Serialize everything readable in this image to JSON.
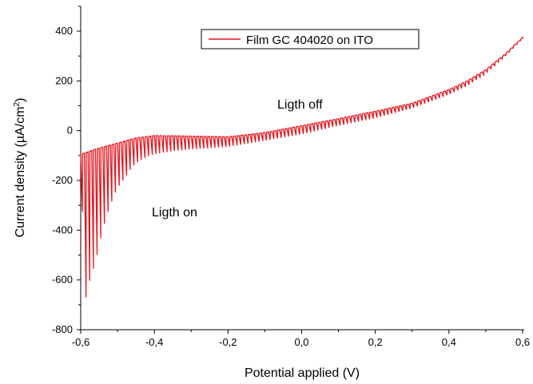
{
  "chart_data": {
    "type": "line",
    "xlabel": "Potential applied (V)",
    "ylabel_main": "Current density (µA/cm",
    "ylabel_sup": "2",
    "ylabel_close": ")",
    "xlim": [
      -0.6,
      0.6
    ],
    "ylim": [
      -800,
      500
    ],
    "x_ticks": [
      -0.6,
      -0.4,
      -0.2,
      0.0,
      0.2,
      0.4,
      0.6
    ],
    "x_tick_labels": [
      "-0,6",
      "-0,4",
      "-0,2",
      "0,0",
      "0,2",
      "0,4",
      "0,6"
    ],
    "y_ticks": [
      -800,
      -600,
      -400,
      -200,
      0,
      200,
      400
    ],
    "y_tick_labels": [
      "-800",
      "-600",
      "-400",
      "-200",
      "0",
      "200",
      "400"
    ],
    "legend_position": "top-center",
    "grid": false,
    "series": [
      {
        "name": "Film GC 404020 on ITO",
        "color": "#e8141c",
        "envelope_light_off": [
          [
            -0.6,
            -95
          ],
          [
            -0.55,
            -70
          ],
          [
            -0.5,
            -50
          ],
          [
            -0.45,
            -30
          ],
          [
            -0.4,
            -20
          ],
          [
            -0.3,
            -22
          ],
          [
            -0.2,
            -25
          ],
          [
            -0.1,
            -8
          ],
          [
            0.0,
            20
          ],
          [
            0.1,
            48
          ],
          [
            0.2,
            78
          ],
          [
            0.3,
            110
          ],
          [
            0.4,
            165
          ],
          [
            0.45,
            200
          ],
          [
            0.5,
            245
          ],
          [
            0.55,
            305
          ],
          [
            0.6,
            375
          ]
        ],
        "envelope_light_on": [
          [
            -0.6,
            -20
          ],
          [
            -0.59,
            -700
          ],
          [
            -0.575,
            -600
          ],
          [
            -0.56,
            -530
          ],
          [
            -0.54,
            -395
          ],
          [
            -0.52,
            -300
          ],
          [
            -0.5,
            -230
          ],
          [
            -0.48,
            -190
          ],
          [
            -0.46,
            -145
          ],
          [
            -0.44,
            -120
          ],
          [
            -0.42,
            -105
          ],
          [
            -0.4,
            -95
          ],
          [
            -0.35,
            -82
          ],
          [
            -0.3,
            -75
          ],
          [
            -0.2,
            -65
          ],
          [
            -0.1,
            -40
          ],
          [
            0.0,
            -15
          ],
          [
            0.1,
            20
          ],
          [
            0.2,
            50
          ],
          [
            0.3,
            90
          ],
          [
            0.4,
            145
          ],
          [
            0.45,
            180
          ],
          [
            0.5,
            230
          ],
          [
            0.55,
            295
          ],
          [
            0.6,
            370
          ]
        ],
        "chop_period_v": 0.01
      }
    ],
    "annotations": [
      {
        "text": "Ligth off",
        "x": -0.01,
        "y": 95
      },
      {
        "text": "Ligth on",
        "x": -0.42,
        "y": -330
      }
    ]
  }
}
